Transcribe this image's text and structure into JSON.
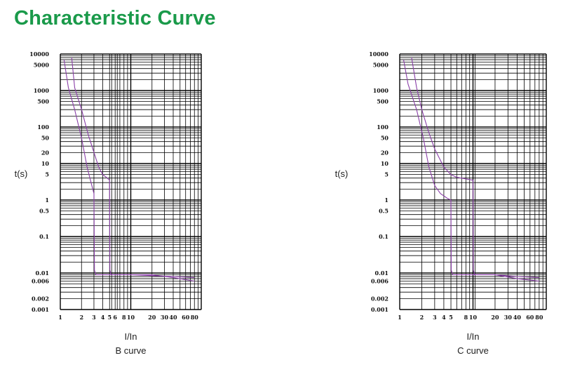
{
  "header": {
    "title": "Characteristic Curve"
  },
  "chart_data": [
    {
      "type": "line",
      "title": "",
      "caption": "B curve",
      "xlabel": "I/In",
      "ylabel": "t(s)",
      "xscale": "log",
      "yscale": "log",
      "xlim": [
        1,
        100
      ],
      "ylim": [
        0.001,
        10000
      ],
      "grid": true,
      "x_tick_labels": [
        "1",
        "2",
        "3",
        "4",
        "5",
        "6",
        "8",
        "10",
        "20",
        "30",
        "40",
        "60",
        "80"
      ],
      "y_tick_labels": [
        "10000",
        "5000",
        "1000",
        "500",
        "100",
        "50",
        "20",
        "10",
        "5",
        "1",
        "0.5",
        "0.1",
        "0.01",
        "0.006",
        "0.002",
        "0.001"
      ],
      "series": [
        {
          "color": "#8a3fa8",
          "x": [
            1.13,
            1.3,
            1.6,
            2.0,
            2.4,
            2.8,
            3.0,
            3.0,
            3.05,
            3.2,
            4.0,
            6.0,
            10,
            20,
            40,
            80
          ],
          "y": [
            7000,
            1200,
            300,
            50,
            8,
            2.5,
            1.5,
            1.0,
            0.012,
            0.009,
            0.009,
            0.009,
            0.009,
            0.0085,
            0.008,
            0.0075
          ]
        },
        {
          "color": "#8a3fa8",
          "x": [
            1.45,
            1.6,
            2.0,
            2.5,
            3.0,
            3.5,
            4.0,
            4.5,
            5.0,
            5.0,
            5.05,
            5.3,
            8,
            12,
            20,
            40,
            80
          ],
          "y": [
            8000,
            1200,
            300,
            60,
            20,
            8,
            5,
            4.2,
            3.5,
            3.5,
            0.012,
            0.009,
            0.009,
            0.009,
            0.009,
            0.0075,
            0.006
          ]
        }
      ],
      "extra_gridlines_x": [
        5,
        6
      ]
    },
    {
      "type": "line",
      "title": "",
      "caption": "C curve",
      "xlabel": "I/In",
      "ylabel": "t(s)",
      "xscale": "log",
      "yscale": "log",
      "xlim": [
        1,
        100
      ],
      "ylim": [
        0.001,
        10000
      ],
      "grid": true,
      "x_tick_labels": [
        "1",
        "2",
        "3",
        "4",
        "5",
        "8",
        "10",
        "20",
        "30",
        "40",
        "60",
        "80"
      ],
      "y_tick_labels": [
        "10000",
        "5000",
        "1000",
        "500",
        "100",
        "50",
        "20",
        "10",
        "5",
        "1",
        "0.5",
        "0.1",
        "0.01",
        "0.006",
        "0.002",
        "0.001"
      ],
      "series": [
        {
          "color": "#8a3fa8",
          "x": [
            1.13,
            1.3,
            1.7,
            2.1,
            2.5,
            3.0,
            3.6,
            4.5,
            5.0,
            5.0,
            5.05,
            5.3,
            8,
            12,
            20,
            40,
            80
          ],
          "y": [
            7000,
            1500,
            300,
            50,
            8,
            2.5,
            1.5,
            1.1,
            1.0,
            1.0,
            0.012,
            0.009,
            0.009,
            0.009,
            0.009,
            0.008,
            0.0075
          ]
        },
        {
          "color": "#8a3fa8",
          "x": [
            1.45,
            1.7,
            2.0,
            2.5,
            3.0,
            4.0,
            5.0,
            6.0,
            8.0,
            10.0,
            10.0,
            10.1,
            10.6,
            15,
            20,
            40,
            80
          ],
          "y": [
            8000,
            1200,
            300,
            70,
            25,
            8,
            5,
            4.2,
            3.8,
            3.5,
            3.5,
            0.012,
            0.009,
            0.009,
            0.009,
            0.007,
            0.006
          ]
        }
      ],
      "extra_gridlines_x": [
        10
      ]
    }
  ]
}
